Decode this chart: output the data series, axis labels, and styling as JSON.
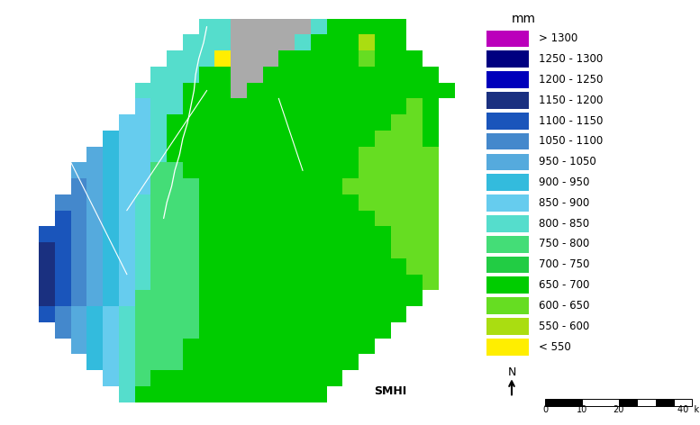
{
  "legend_title": "mm",
  "legend_colors": [
    "#bb00bb",
    "#000080",
    "#0000bb",
    "#1a3080",
    "#1a55bb",
    "#4488cc",
    "#55aadd",
    "#33bbdd",
    "#66ccee",
    "#55ddcc",
    "#44dd77",
    "#22cc44",
    "#00cc00",
    "#66dd22",
    "#aadd11",
    "#ffee00"
  ],
  "legend_labels": [
    "> 1300",
    "1250 - 1300",
    "1200 - 1250",
    "1150 - 1200",
    "1100 - 1150",
    "1050 - 1100",
    "950 - 1050",
    "900 - 950",
    "850 - 900",
    "800 - 850",
    "750 - 800",
    "700 - 750",
    "650 - 700",
    "600 - 650",
    "550 - 600",
    "< 550"
  ],
  "smhi_text": "SMHI",
  "background_color": "#ffffff"
}
